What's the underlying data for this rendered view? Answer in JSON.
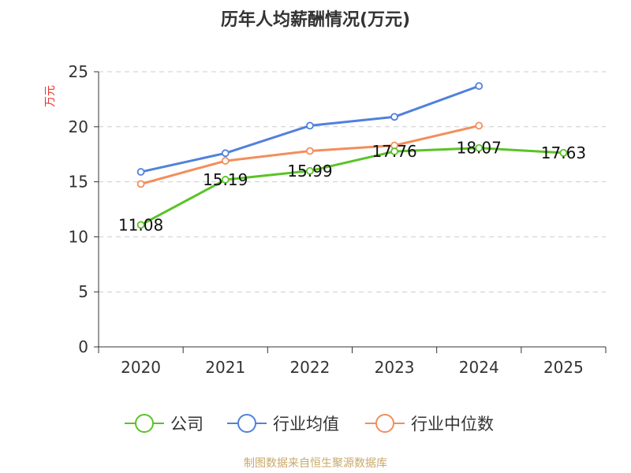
{
  "chart_data": {
    "type": "line",
    "title": "历年人均薪酬情况(万元)",
    "ylabel": "万元",
    "xlabel": "",
    "categories": [
      "2020",
      "2021",
      "2022",
      "2023",
      "2024",
      "2025"
    ],
    "ylim": [
      0,
      25
    ],
    "yticks": [
      0,
      5,
      10,
      15,
      20,
      25
    ],
    "grid": true,
    "legend_position": "bottom",
    "series": [
      {
        "name": "公司",
        "color": "#5ac327",
        "values": [
          11.08,
          15.19,
          15.99,
          17.76,
          18.07,
          17.63
        ],
        "labels": [
          "11.08",
          "15.19",
          "15.99",
          "17.76",
          "18.07",
          "17.63"
        ]
      },
      {
        "name": "行业均值",
        "color": "#5081dc",
        "values": [
          15.9,
          17.6,
          20.1,
          20.9,
          23.7,
          null
        ]
      },
      {
        "name": "行业中位数",
        "color": "#f28e5c",
        "values": [
          14.8,
          16.9,
          17.8,
          18.3,
          20.1,
          null
        ]
      }
    ]
  },
  "source_text": "制图数据来自恒生聚源数据库",
  "colors": {
    "title": "#333333",
    "ylabel": "#e8332f",
    "axis": "#333333",
    "grid": "#cccccc",
    "source": "#c8a96a"
  }
}
